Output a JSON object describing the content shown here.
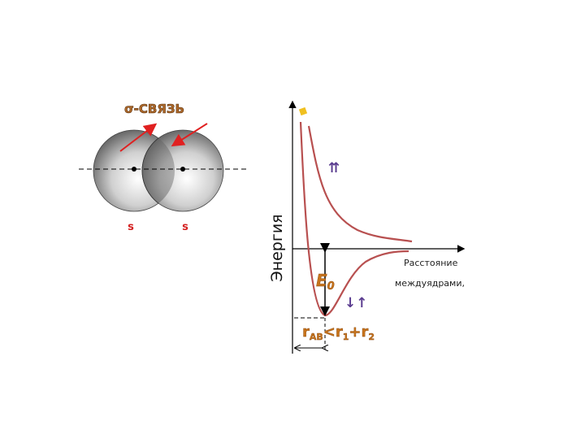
{
  "left": {
    "title": "σ-СВЯЗЬ",
    "orbital_labels": [
      "s",
      "s"
    ],
    "arrow_color": "#e02020"
  },
  "graph": {
    "y_label": "Энергия",
    "x_label_line1": "Расстояние",
    "x_label_line2": "междуядрами,",
    "energy_label": "E",
    "energy_sub": "0",
    "distance_label": {
      "r": "r",
      "ab": "AB",
      "lt": "<r",
      "one": "1",
      "plus": "+r",
      "two": "2"
    },
    "parallel_spins": "⇈",
    "antiparallel_spins": "↓↑",
    "curve_color": "#b85050",
    "label_color": "#c8741c"
  }
}
